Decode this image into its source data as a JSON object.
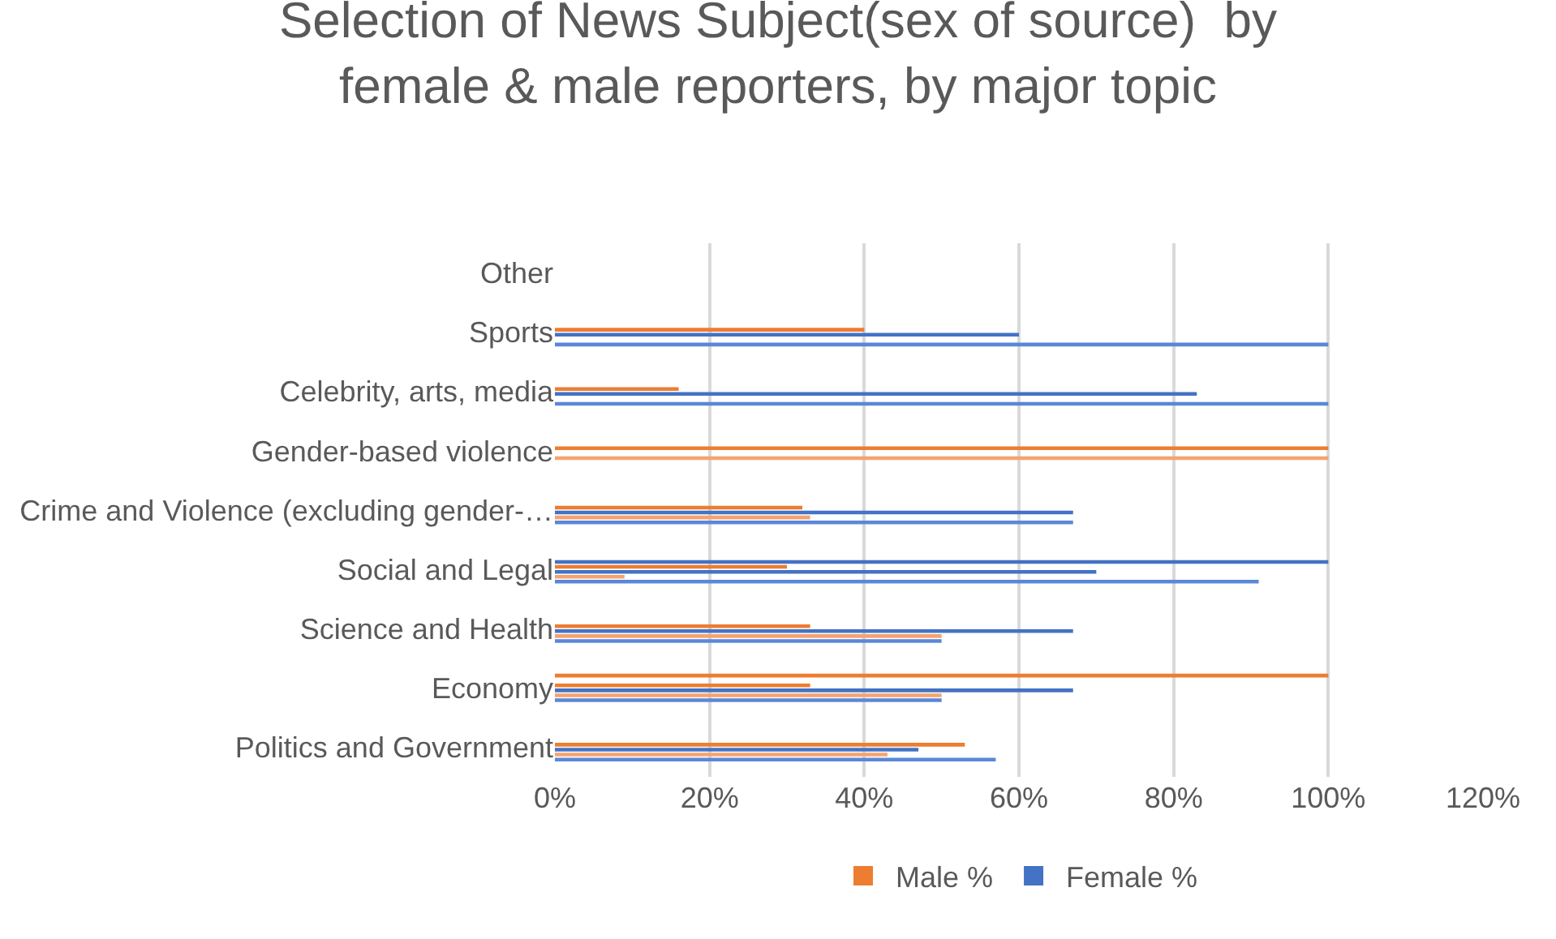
{
  "chart_data": {
    "type": "bar",
    "orientation": "horizontal",
    "title": "Selection of News Subject(sex of source)  by\nfemale & male reporters, by major topic",
    "categories": [
      "Other",
      "Sports",
      "Celebrity, arts, media",
      "Gender-based violence",
      "Crime and Violence (excluding gender-…",
      "Social and Legal",
      "Science and Health",
      "Economy",
      "Politics and Government"
    ],
    "series": [
      {
        "color": "#ed7d31",
        "values": [
          null,
          null,
          null,
          null,
          null,
          null,
          null,
          100,
          null
        ]
      },
      {
        "color": "#4472c4",
        "values": [
          null,
          null,
          null,
          null,
          null,
          100,
          null,
          null,
          null
        ]
      },
      {
        "name": "Male %",
        "color": "#ed7d31",
        "values": [
          null,
          40,
          16,
          100,
          32,
          30,
          33,
          33,
          53
        ]
      },
      {
        "name": "Female %",
        "color": "#4472c4",
        "values": [
          null,
          60,
          83,
          null,
          67,
          70,
          67,
          67,
          47
        ]
      },
      {
        "color": "#f4a36f",
        "values": [
          null,
          null,
          null,
          100,
          33,
          9,
          50,
          50,
          43
        ]
      },
      {
        "color": "#5b87d6",
        "values": [
          null,
          100,
          100,
          null,
          67,
          91,
          50,
          50,
          57
        ]
      }
    ],
    "xlim": [
      0,
      120
    ],
    "xticks": [
      {
        "value": 0,
        "label": "0%"
      },
      {
        "value": 20,
        "label": "20%"
      },
      {
        "value": 40,
        "label": "40%"
      },
      {
        "value": 60,
        "label": "60%"
      },
      {
        "value": 80,
        "label": "80%"
      },
      {
        "value": 100,
        "label": "100%"
      },
      {
        "value": 120,
        "label": "120%"
      }
    ],
    "grid": "x",
    "legend": "bottom"
  }
}
